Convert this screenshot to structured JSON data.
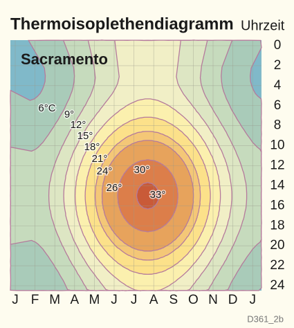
{
  "chart_data": {
    "type": "contour",
    "title": "Thermoisoplethendiagramm",
    "y_axis_label": "Uhrzeit",
    "location": "Sacramento",
    "categories": [
      "J",
      "F",
      "M",
      "A",
      "M",
      "J",
      "J",
      "A",
      "S",
      "O",
      "N",
      "D",
      "J"
    ],
    "ylim": [
      0,
      24
    ],
    "yticks": [
      0,
      2,
      4,
      6,
      8,
      10,
      12,
      14,
      16,
      18,
      20,
      22,
      24
    ],
    "levels": [
      {
        "value": 6,
        "label": "6°C"
      },
      {
        "value": 9,
        "label": "9°"
      },
      {
        "value": 12,
        "label": "12°"
      },
      {
        "value": 15,
        "label": "15°"
      },
      {
        "value": 18,
        "label": "18°"
      },
      {
        "value": 21,
        "label": "21°"
      },
      {
        "value": 24,
        "label": "24°"
      },
      {
        "value": 26,
        "label": "26°"
      },
      {
        "value": 30,
        "label": "30°"
      },
      {
        "value": 33,
        "label": "33°"
      }
    ],
    "colors": [
      "#80b9c9",
      "#a9cbb9",
      "#c6dbbd",
      "#dde6c3",
      "#f1efc6",
      "#fbf0ae",
      "#fce18a",
      "#f4c777",
      "#e7a35c",
      "#dc7e4a",
      "#c95a38"
    ],
    "line_color": "#b57a9c",
    "grid": true,
    "credit": "D361_2b"
  }
}
